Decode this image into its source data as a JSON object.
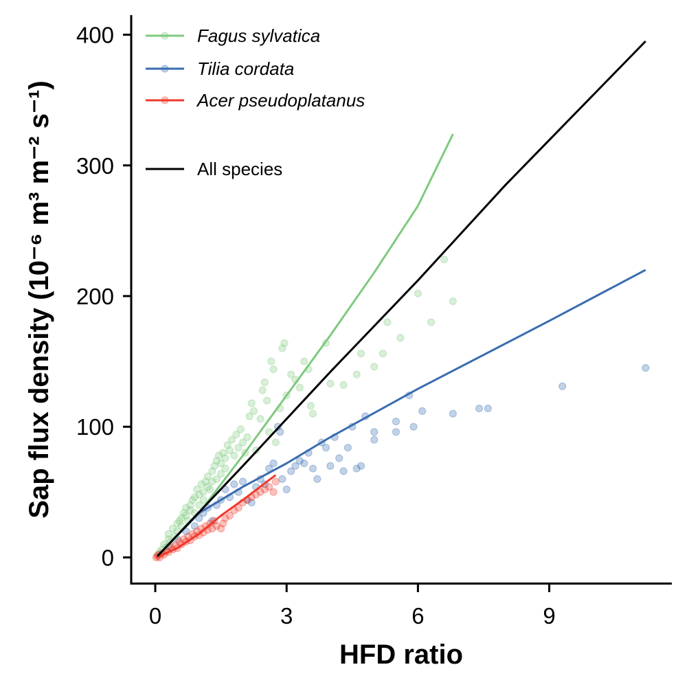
{
  "chart_data": {
    "type": "scatter",
    "xlabel": "HFD ratio",
    "ylabel": "Sap flux density (10⁻⁶ m³ m⁻² s⁻¹)",
    "xlim": [
      -0.55,
      11.8
    ],
    "ylim": [
      -20,
      415
    ],
    "x_ticks": [
      0,
      3,
      6,
      9
    ],
    "y_ticks": [
      0,
      100,
      200,
      300,
      400
    ],
    "grid": false,
    "legend_position": "top-left",
    "series": [
      {
        "name": "Fagus sylvatica",
        "color": "#7fc97f",
        "points": [
          [
            0.05,
            2
          ],
          [
            0.1,
            4
          ],
          [
            0.15,
            6
          ],
          [
            0.2,
            10
          ],
          [
            0.25,
            8
          ],
          [
            0.3,
            14
          ],
          [
            0.3,
            18
          ],
          [
            0.35,
            12
          ],
          [
            0.4,
            22
          ],
          [
            0.45,
            16
          ],
          [
            0.5,
            26
          ],
          [
            0.5,
            20
          ],
          [
            0.55,
            28
          ],
          [
            0.6,
            30
          ],
          [
            0.6,
            24
          ],
          [
            0.65,
            34
          ],
          [
            0.7,
            38
          ],
          [
            0.7,
            32
          ],
          [
            0.75,
            28
          ],
          [
            0.8,
            40
          ],
          [
            0.8,
            36
          ],
          [
            0.85,
            44
          ],
          [
            0.9,
            46
          ],
          [
            0.9,
            34
          ],
          [
            0.95,
            52
          ],
          [
            1.0,
            48
          ],
          [
            1.0,
            40
          ],
          [
            1.05,
            56
          ],
          [
            1.1,
            50
          ],
          [
            1.1,
            44
          ],
          [
            1.15,
            58
          ],
          [
            1.2,
            62
          ],
          [
            1.2,
            54
          ],
          [
            1.25,
            52
          ],
          [
            1.3,
            66
          ],
          [
            1.3,
            58
          ],
          [
            1.35,
            70
          ],
          [
            1.4,
            74
          ],
          [
            1.4,
            60
          ],
          [
            1.45,
            78
          ],
          [
            1.5,
            72
          ],
          [
            1.5,
            64
          ],
          [
            1.55,
            80
          ],
          [
            1.6,
            76
          ],
          [
            1.6,
            68
          ],
          [
            1.65,
            86
          ],
          [
            1.7,
            82
          ],
          [
            1.75,
            90
          ],
          [
            1.8,
            78
          ],
          [
            1.85,
            94
          ],
          [
            1.9,
            84
          ],
          [
            1.95,
            98
          ],
          [
            2.0,
            88
          ],
          [
            2.05,
            80
          ],
          [
            2.1,
            92
          ],
          [
            2.15,
            108
          ],
          [
            2.2,
            118
          ],
          [
            2.25,
            112
          ],
          [
            2.3,
            82
          ],
          [
            2.4,
            106
          ],
          [
            2.45,
            128
          ],
          [
            2.5,
            134
          ],
          [
            2.55,
            120
          ],
          [
            2.6,
            96
          ],
          [
            2.65,
            150
          ],
          [
            2.7,
            144
          ],
          [
            2.75,
            88
          ],
          [
            2.85,
            114
          ],
          [
            2.9,
            160
          ],
          [
            2.95,
            164
          ],
          [
            3.0,
            124
          ],
          [
            3.1,
            140
          ],
          [
            3.2,
            136
          ],
          [
            3.3,
            130
          ],
          [
            3.4,
            150
          ],
          [
            3.5,
            144
          ],
          [
            3.55,
            116
          ],
          [
            3.6,
            110
          ],
          [
            3.9,
            164
          ],
          [
            4.0,
            133
          ],
          [
            4.3,
            132
          ],
          [
            4.6,
            140
          ],
          [
            4.7,
            156
          ],
          [
            5.0,
            146
          ],
          [
            5.2,
            156
          ],
          [
            5.3,
            180
          ],
          [
            5.6,
            168
          ],
          [
            6.0,
            202
          ],
          [
            6.3,
            180
          ],
          [
            6.6,
            228
          ],
          [
            6.8,
            196
          ]
        ],
        "fit": [
          [
            0.05,
            1
          ],
          [
            1.0,
            34
          ],
          [
            2.0,
            78
          ],
          [
            3.0,
            124
          ],
          [
            4.0,
            170
          ],
          [
            5.0,
            218
          ],
          [
            6.0,
            269
          ],
          [
            6.8,
            324
          ]
        ]
      },
      {
        "name": "Tilia cordata",
        "color": "#386cb0",
        "points": [
          [
            0.3,
            8
          ],
          [
            0.5,
            14
          ],
          [
            0.7,
            20
          ],
          [
            0.9,
            24
          ],
          [
            1.0,
            30
          ],
          [
            1.1,
            34
          ],
          [
            1.2,
            38
          ],
          [
            1.3,
            28
          ],
          [
            1.4,
            40
          ],
          [
            1.5,
            44
          ],
          [
            1.6,
            52
          ],
          [
            1.7,
            46
          ],
          [
            1.8,
            56
          ],
          [
            1.9,
            50
          ],
          [
            2.0,
            58
          ],
          [
            2.1,
            44
          ],
          [
            2.2,
            42
          ],
          [
            2.3,
            54
          ],
          [
            2.4,
            60
          ],
          [
            2.5,
            56
          ],
          [
            2.6,
            68
          ],
          [
            2.7,
            72
          ],
          [
            2.8,
            100
          ],
          [
            2.85,
            96
          ],
          [
            2.9,
            60
          ],
          [
            3.0,
            52
          ],
          [
            3.1,
            66
          ],
          [
            3.2,
            70
          ],
          [
            3.3,
            74
          ],
          [
            3.4,
            72
          ],
          [
            3.5,
            80
          ],
          [
            3.6,
            68
          ],
          [
            3.7,
            60
          ],
          [
            3.8,
            88
          ],
          [
            3.9,
            84
          ],
          [
            4.0,
            70
          ],
          [
            4.1,
            92
          ],
          [
            4.2,
            76
          ],
          [
            4.3,
            66
          ],
          [
            4.4,
            84
          ],
          [
            4.5,
            100
          ],
          [
            4.6,
            68
          ],
          [
            4.7,
            70
          ],
          [
            4.8,
            108
          ],
          [
            5.0,
            90
          ],
          [
            5.0,
            96
          ],
          [
            5.5,
            96
          ],
          [
            5.5,
            104
          ],
          [
            5.8,
            124
          ],
          [
            5.9,
            100
          ],
          [
            6.1,
            112
          ],
          [
            6.8,
            110
          ],
          [
            7.4,
            114
          ],
          [
            7.6,
            114
          ],
          [
            9.3,
            131
          ],
          [
            11.2,
            145
          ]
        ],
        "fit": [
          [
            0.05,
            1
          ],
          [
            1.0,
            34
          ],
          [
            2.0,
            54
          ],
          [
            3.0,
            72
          ],
          [
            4.0,
            92
          ],
          [
            6.0,
            129
          ],
          [
            9.0,
            181
          ],
          [
            11.2,
            220
          ]
        ]
      },
      {
        "name": "Acer pseudoplatanus",
        "color": "#f0392b",
        "points": [
          [
            0.02,
            0
          ],
          [
            0.05,
            1
          ],
          [
            0.08,
            2
          ],
          [
            0.1,
            0
          ],
          [
            0.15,
            3
          ],
          [
            0.2,
            2
          ],
          [
            0.25,
            5
          ],
          [
            0.3,
            4
          ],
          [
            0.35,
            8
          ],
          [
            0.4,
            6
          ],
          [
            0.45,
            9
          ],
          [
            0.5,
            7
          ],
          [
            0.55,
            12
          ],
          [
            0.6,
            10
          ],
          [
            0.65,
            14
          ],
          [
            0.7,
            12
          ],
          [
            0.75,
            16
          ],
          [
            0.8,
            13
          ],
          [
            0.85,
            18
          ],
          [
            0.9,
            16
          ],
          [
            0.95,
            20
          ],
          [
            1.0,
            17
          ],
          [
            1.05,
            22
          ],
          [
            1.1,
            19
          ],
          [
            1.15,
            24
          ],
          [
            1.2,
            21
          ],
          [
            1.25,
            26
          ],
          [
            1.3,
            22
          ],
          [
            1.35,
            28
          ],
          [
            1.4,
            24
          ],
          [
            1.5,
            22
          ],
          [
            1.55,
            26
          ],
          [
            1.6,
            30
          ],
          [
            1.7,
            32
          ],
          [
            1.8,
            36
          ],
          [
            1.9,
            38
          ],
          [
            2.0,
            42
          ],
          [
            2.1,
            44
          ],
          [
            2.2,
            46
          ],
          [
            2.3,
            48
          ],
          [
            2.4,
            50
          ],
          [
            2.5,
            52
          ],
          [
            2.6,
            54
          ],
          [
            2.7,
            50
          ],
          [
            2.75,
            58
          ]
        ],
        "fit": [
          [
            0.02,
            0
          ],
          [
            0.5,
            7
          ],
          [
            1.0,
            18
          ],
          [
            1.5,
            32
          ],
          [
            2.0,
            44
          ],
          [
            2.75,
            63
          ]
        ]
      },
      {
        "name": "All species",
        "color": "#000000",
        "points": [],
        "fit": [
          [
            0.05,
            1
          ],
          [
            2.0,
            70
          ],
          [
            4.0,
            142
          ],
          [
            6.0,
            212
          ],
          [
            8.0,
            285
          ],
          [
            11.2,
            395
          ]
        ]
      }
    ]
  }
}
